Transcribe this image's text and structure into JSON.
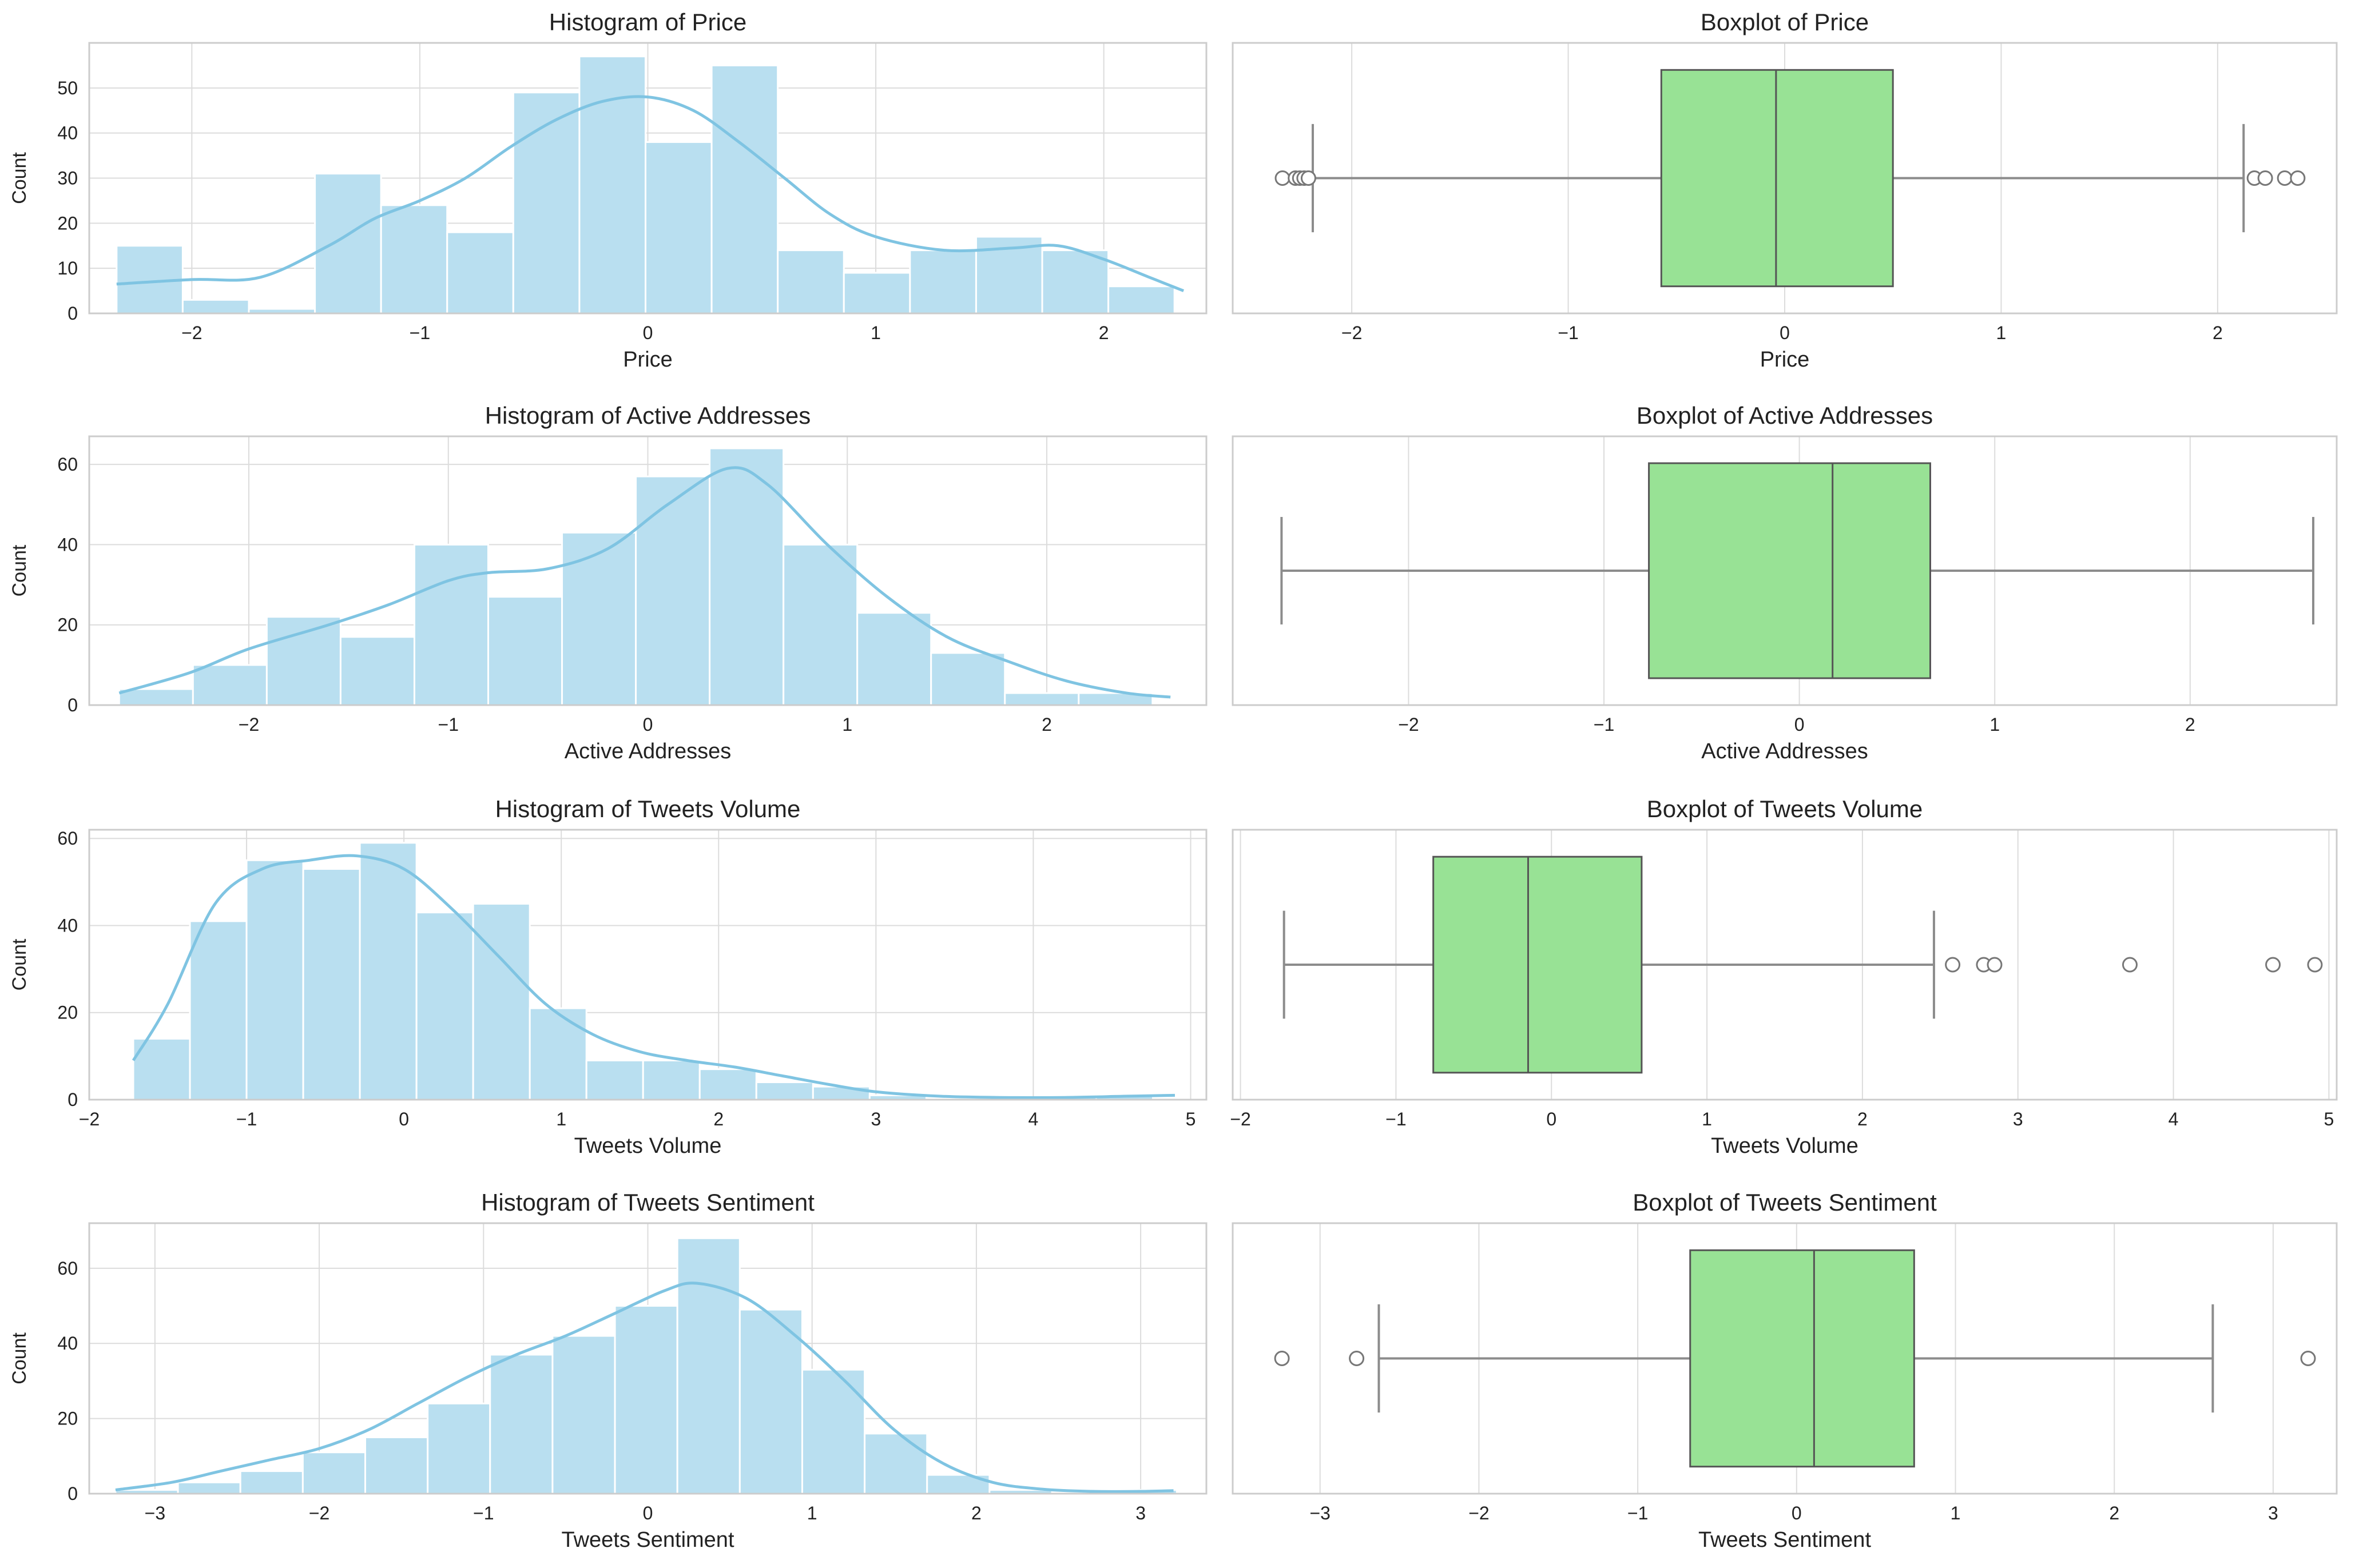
{
  "colors": {
    "hist_fill": "#b9dff0",
    "hist_edge": "#ffffff",
    "kde": "#7fc4e2",
    "box_fill": "#98e295",
    "box_edge": "#555555",
    "whisker": "#8c8c8c",
    "grid": "#dcdcdc",
    "frame": "#cccccc"
  },
  "chart_data": [
    {
      "type": "histogram",
      "variable": "Price",
      "title": "Histogram of Price",
      "xlabel": "Price",
      "ylabel": "Count",
      "xlim": [
        -2.45,
        2.45
      ],
      "ylim": [
        0,
        60
      ],
      "xticks": [
        -2,
        -1,
        0,
        1,
        2
      ],
      "yticks": [
        0,
        10,
        20,
        30,
        40,
        50
      ],
      "bin_edges": [
        -2.33,
        -2.04,
        -1.75,
        -1.46,
        -1.17,
        -0.88,
        -0.59,
        -0.3,
        -0.01,
        0.28,
        0.57,
        0.86,
        1.15,
        1.44,
        1.73,
        2.02,
        2.31
      ],
      "counts": [
        15,
        3,
        1,
        31,
        24,
        18,
        49,
        57,
        38,
        55,
        14,
        9,
        14,
        17,
        14,
        6
      ],
      "kde": {
        "x": [
          -2.33,
          -2.0,
          -1.7,
          -1.4,
          -1.2,
          -1.0,
          -0.8,
          -0.6,
          -0.4,
          -0.2,
          0.0,
          0.2,
          0.4,
          0.6,
          0.8,
          1.0,
          1.3,
          1.6,
          1.8,
          2.0,
          2.2,
          2.35
        ],
        "y": [
          6.5,
          7.5,
          8,
          15,
          21,
          25,
          30,
          37,
          43,
          47,
          48,
          45,
          38,
          30,
          22,
          17,
          14,
          14.5,
          15,
          12,
          8,
          5
        ]
      }
    },
    {
      "type": "boxplot",
      "variable": "Price",
      "title": "Boxplot of Price",
      "xlabel": "Price",
      "xlim": [
        -2.55,
        2.55
      ],
      "xticks": [
        -2,
        -1,
        0,
        1,
        2
      ],
      "q1": -0.57,
      "median": -0.04,
      "q3": 0.5,
      "whisker_low": -2.18,
      "whisker_high": 2.12,
      "outliers": [
        -2.32,
        -2.26,
        -2.24,
        -2.22,
        -2.2,
        2.17,
        2.22,
        2.31,
        2.37
      ]
    },
    {
      "type": "histogram",
      "variable": "Active Addresses",
      "title": "Histogram of Active Addresses",
      "xlabel": "Active Addresses",
      "ylabel": "Count",
      "xlim": [
        -2.8,
        2.8
      ],
      "ylim": [
        0,
        67
      ],
      "xticks": [
        -2,
        -1,
        0,
        1,
        2
      ],
      "yticks": [
        0,
        20,
        40,
        60
      ],
      "bin_edges": [
        -2.65,
        -2.28,
        -1.91,
        -1.54,
        -1.17,
        -0.8,
        -0.43,
        -0.06,
        0.31,
        0.68,
        1.05,
        1.42,
        1.79,
        2.16,
        2.53
      ],
      "counts": [
        4,
        10,
        22,
        17,
        40,
        27,
        43,
        57,
        64,
        40,
        23,
        13,
        3,
        3
      ],
      "kde": {
        "x": [
          -2.65,
          -2.3,
          -2.0,
          -1.6,
          -1.3,
          -1.0,
          -0.8,
          -0.5,
          -0.2,
          0.1,
          0.4,
          0.6,
          0.9,
          1.2,
          1.5,
          1.8,
          2.1,
          2.4,
          2.62
        ],
        "y": [
          3,
          8,
          14,
          20,
          25,
          31,
          33,
          34,
          39,
          50,
          59,
          55,
          40,
          27,
          17,
          11,
          6,
          3,
          2
        ]
      }
    },
    {
      "type": "boxplot",
      "variable": "Active Addresses",
      "title": "Boxplot of Active Addresses",
      "xlabel": "Active Addresses",
      "xlim": [
        -2.9,
        2.75
      ],
      "xticks": [
        -2,
        -1,
        0,
        1,
        2
      ],
      "q1": -0.77,
      "median": 0.17,
      "q3": 0.67,
      "whisker_low": -2.65,
      "whisker_high": 2.63,
      "outliers": []
    },
    {
      "type": "histogram",
      "variable": "Tweets Volume",
      "title": "Histogram of Tweets Volume",
      "xlabel": "Tweets Volume",
      "ylabel": "Count",
      "xlim": [
        -2.0,
        5.1
      ],
      "ylim": [
        0,
        62
      ],
      "xticks": [
        -2,
        -1,
        0,
        1,
        2,
        3,
        4,
        5
      ],
      "yticks": [
        0,
        20,
        40,
        60
      ],
      "bin_edges": [
        -1.72,
        -1.36,
        -1.0,
        -0.64,
        -0.28,
        0.08,
        0.44,
        0.8,
        1.16,
        1.52,
        1.88,
        2.24,
        2.6,
        2.96,
        3.32,
        3.68,
        4.04,
        4.4,
        4.76
      ],
      "counts": [
        14,
        41,
        55,
        53,
        59,
        43,
        45,
        21,
        9,
        9,
        7,
        4,
        3,
        1,
        0,
        0,
        1,
        1
      ],
      "kde": {
        "x": [
          -1.72,
          -1.5,
          -1.2,
          -0.9,
          -0.6,
          -0.3,
          0.0,
          0.3,
          0.6,
          0.9,
          1.2,
          1.5,
          1.8,
          2.1,
          2.4,
          2.7,
          3.0,
          3.4,
          3.8,
          4.2,
          4.6,
          4.9
        ],
        "y": [
          9,
          22,
          45,
          53,
          55,
          56,
          53,
          44,
          33,
          22,
          15,
          11,
          9,
          7.5,
          5.5,
          3.5,
          1.8,
          0.8,
          0.5,
          0.5,
          0.8,
          1
        ]
      }
    },
    {
      "type": "boxplot",
      "variable": "Tweets Volume",
      "title": "Boxplot of Tweets Volume",
      "xlabel": "Tweets Volume",
      "xlim": [
        -2.05,
        5.05
      ],
      "xticks": [
        -2,
        -1,
        0,
        1,
        2,
        3,
        4,
        5
      ],
      "q1": -0.76,
      "median": -0.15,
      "q3": 0.58,
      "whisker_low": -1.72,
      "whisker_high": 2.46,
      "outliers": [
        2.58,
        2.78,
        2.85,
        3.72,
        4.64,
        4.91
      ]
    },
    {
      "type": "histogram",
      "variable": "Tweets Sentiment",
      "title": "Histogram of Tweets Sentiment",
      "xlabel": "Tweets Sentiment",
      "ylabel": "Count",
      "xlim": [
        -3.4,
        3.4
      ],
      "ylim": [
        0,
        72
      ],
      "xticks": [
        -3,
        -2,
        -1,
        0,
        1,
        2,
        3
      ],
      "yticks": [
        0,
        20,
        40,
        60
      ],
      "bin_edges": [
        -3.24,
        -2.86,
        -2.48,
        -2.1,
        -1.72,
        -1.34,
        -0.96,
        -0.58,
        -0.2,
        0.18,
        0.56,
        0.94,
        1.32,
        1.7,
        2.08,
        2.46,
        2.84,
        3.22
      ],
      "counts": [
        1,
        3,
        6,
        11,
        15,
        24,
        37,
        42,
        50,
        68,
        49,
        33,
        16,
        5,
        1,
        0,
        1
      ],
      "kde": {
        "x": [
          -3.24,
          -2.9,
          -2.6,
          -2.3,
          -2.0,
          -1.7,
          -1.4,
          -1.1,
          -0.8,
          -0.5,
          -0.2,
          0.1,
          0.3,
          0.6,
          0.9,
          1.2,
          1.5,
          1.8,
          2.1,
          2.4,
          2.7,
          3.0,
          3.2
        ],
        "y": [
          1,
          3,
          6,
          9,
          12,
          17,
          24,
          31,
          37,
          42,
          48,
          54,
          56,
          52,
          42,
          30,
          17,
          8,
          3,
          1.2,
          0.6,
          0.6,
          0.8
        ]
      }
    },
    {
      "type": "boxplot",
      "variable": "Tweets Sentiment",
      "title": "Boxplot of Tweets Sentiment",
      "xlabel": "Tweets Sentiment",
      "xlim": [
        -3.55,
        3.4
      ],
      "xticks": [
        -3,
        -2,
        -1,
        0,
        1,
        2,
        3
      ],
      "q1": -0.67,
      "median": 0.11,
      "q3": 0.74,
      "whisker_low": -2.63,
      "whisker_high": 2.62,
      "outliers": [
        -3.24,
        -2.77,
        3.22
      ]
    }
  ]
}
